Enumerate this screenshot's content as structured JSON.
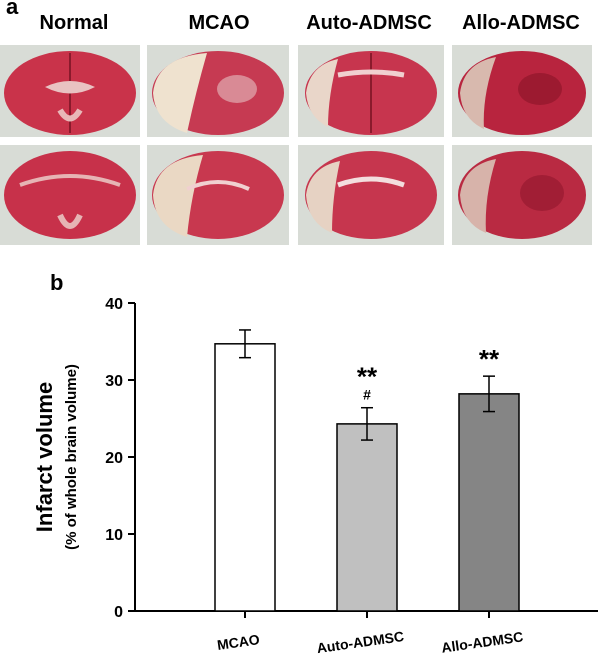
{
  "panel_a": {
    "letter": "a",
    "columns": [
      "Normal",
      "MCAO",
      "Auto-ADMSC",
      "Allo-ADMSC"
    ]
  },
  "panel_b": {
    "letter": "b"
  },
  "chart_data": {
    "type": "bar",
    "categories": [
      "MCAO",
      "Auto-ADMSC",
      "Allo-ADMSC"
    ],
    "values": [
      34.7,
      24.3,
      28.2
    ],
    "errors": [
      1.8,
      2.1,
      2.3
    ],
    "significance": [
      "",
      "**\n#",
      "**"
    ],
    "bar_colors": [
      "#ffffff",
      "#c0c0c0",
      "#858585"
    ],
    "title": "",
    "xlabel": "",
    "ylabel": "Infarct volume",
    "ylabel_sub": "(% of whole brain volume)",
    "ylim": [
      0,
      40
    ],
    "yticks": [
      0,
      10,
      20,
      30,
      40
    ],
    "grid": false
  }
}
